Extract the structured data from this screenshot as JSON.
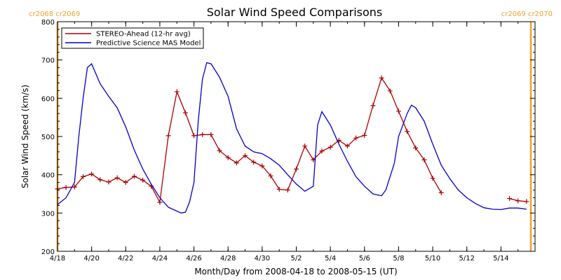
{
  "chart_data": {
    "type": "line",
    "title": "Solar Wind Speed Comparisons",
    "xlabel": "Month/Day from 2008-04-18 to 2008-05-15 (UT)",
    "ylabel": "Solar Wind Speed (km/s)",
    "xlim": [
      "2008-04-18",
      "2008-05-16"
    ],
    "ylim": [
      200,
      800
    ],
    "x_ticks": [
      "4/18",
      "4/20",
      "4/22",
      "4/24",
      "4/26",
      "4/28",
      "4/30",
      "5/2",
      "5/4",
      "5/6",
      "5/8",
      "5/10",
      "5/12",
      "5/14"
    ],
    "x_tick_dates": [
      "2008-04-18",
      "2008-04-20",
      "2008-04-22",
      "2008-04-24",
      "2008-04-26",
      "2008-04-28",
      "2008-04-30",
      "2008-05-02",
      "2008-05-04",
      "2008-05-06",
      "2008-05-08",
      "2008-05-10",
      "2008-05-12",
      "2008-05-14"
    ],
    "y_ticks": [
      200,
      300,
      400,
      500,
      600,
      700,
      800
    ],
    "legend_position": "top-left",
    "carrington_labels": {
      "left": "cr2068 cr2069",
      "right": "cr2069 cr2070",
      "left_marker_date": "2008-04-18",
      "right_marker_date": "2008-05-15 18:00",
      "color": "#f0a030"
    },
    "series": [
      {
        "name": "STEREO-Ahead (12-hr avg)",
        "color": "#aa0000",
        "marker": "plus",
        "segments": [
          [
            [
              "2008-04-18 00:00",
              363
            ],
            [
              "2008-04-18 12:00",
              367
            ],
            [
              "2008-04-19 00:00",
              368
            ],
            [
              "2008-04-19 12:00",
              395
            ],
            [
              "2008-04-20 00:00",
              402
            ],
            [
              "2008-04-20 12:00",
              387
            ],
            [
              "2008-04-21 00:00",
              381
            ],
            [
              "2008-04-21 12:00",
              392
            ],
            [
              "2008-04-22 00:00",
              380
            ],
            [
              "2008-04-22 12:00",
              396
            ],
            [
              "2008-04-23 00:00",
              386
            ],
            [
              "2008-04-23 12:00",
              370
            ],
            [
              "2008-04-24 00:00",
              328
            ],
            [
              "2008-04-24 12:00",
              502
            ],
            [
              "2008-04-25 00:00",
              617
            ],
            [
              "2008-04-25 12:00",
              562
            ],
            [
              "2008-04-26 00:00",
              502
            ],
            [
              "2008-04-26 12:00",
              505
            ],
            [
              "2008-04-27 00:00",
              505
            ],
            [
              "2008-04-27 12:00",
              463
            ],
            [
              "2008-04-28 00:00",
              445
            ],
            [
              "2008-04-28 12:00",
              431
            ],
            [
              "2008-04-29 00:00",
              450
            ],
            [
              "2008-04-29 12:00",
              433
            ],
            [
              "2008-04-30 00:00",
              423
            ],
            [
              "2008-04-30 12:00",
              397
            ],
            [
              "2008-05-01 00:00",
              362
            ],
            [
              "2008-05-01 12:00",
              360
            ],
            [
              "2008-05-02 00:00",
              415
            ],
            [
              "2008-05-02 12:00",
              475
            ],
            [
              "2008-05-03 00:00",
              439
            ],
            [
              "2008-05-03 12:00",
              462
            ],
            [
              "2008-05-04 00:00",
              472
            ],
            [
              "2008-05-04 12:00",
              490
            ],
            [
              "2008-05-05 00:00",
              475
            ],
            [
              "2008-05-05 12:00",
              496
            ],
            [
              "2008-05-06 00:00",
              503
            ],
            [
              "2008-05-06 12:00",
              581
            ],
            [
              "2008-05-07 00:00",
              653
            ],
            [
              "2008-05-07 12:00",
              619
            ],
            [
              "2008-05-08 00:00",
              566
            ],
            [
              "2008-05-08 12:00",
              513
            ],
            [
              "2008-05-09 00:00",
              470
            ],
            [
              "2008-05-09 12:00",
              439
            ],
            [
              "2008-05-10 00:00",
              391
            ],
            [
              "2008-05-10 12:00",
              353
            ]
          ],
          [
            [
              "2008-05-14 12:00",
              338
            ],
            [
              "2008-05-15 00:00",
              332
            ],
            [
              "2008-05-15 12:00",
              330
            ]
          ]
        ]
      },
      {
        "name": "Predictive Science MAS Model",
        "color": "#0000cc",
        "marker": "none",
        "segments": [
          [
            [
              "2008-04-18 00:00",
              322
            ],
            [
              "2008-04-18 12:00",
              340
            ],
            [
              "2008-04-19 00:00",
              380
            ],
            [
              "2008-04-19 06:00",
              500
            ],
            [
              "2008-04-19 12:00",
              600
            ],
            [
              "2008-04-19 18:00",
              680
            ],
            [
              "2008-04-20 00:00",
              690
            ],
            [
              "2008-04-20 12:00",
              638
            ],
            [
              "2008-04-21 00:00",
              605
            ],
            [
              "2008-04-21 12:00",
              575
            ],
            [
              "2008-04-22 00:00",
              525
            ],
            [
              "2008-04-22 12:00",
              465
            ],
            [
              "2008-04-23 00:00",
              415
            ],
            [
              "2008-04-23 12:00",
              375
            ],
            [
              "2008-04-24 00:00",
              340
            ],
            [
              "2008-04-24 12:00",
              315
            ],
            [
              "2008-04-25 00:00",
              305
            ],
            [
              "2008-04-25 06:00",
              300
            ],
            [
              "2008-04-25 12:00",
              302
            ],
            [
              "2008-04-25 18:00",
              330
            ],
            [
              "2008-04-26 00:00",
              380
            ],
            [
              "2008-04-26 06:00",
              540
            ],
            [
              "2008-04-26 12:00",
              650
            ],
            [
              "2008-04-26 18:00",
              693
            ],
            [
              "2008-04-27 00:00",
              690
            ],
            [
              "2008-04-27 12:00",
              655
            ],
            [
              "2008-04-28 00:00",
              605
            ],
            [
              "2008-04-28 12:00",
              520
            ],
            [
              "2008-04-29 00:00",
              475
            ],
            [
              "2008-04-29 12:00",
              460
            ],
            [
              "2008-04-30 00:00",
              455
            ],
            [
              "2008-04-30 12:00",
              442
            ],
            [
              "2008-05-01 00:00",
              425
            ],
            [
              "2008-05-01 12:00",
              400
            ],
            [
              "2008-05-02 00:00",
              376
            ],
            [
              "2008-05-02 12:00",
              357
            ],
            [
              "2008-05-03 00:00",
              370
            ],
            [
              "2008-05-03 06:00",
              530
            ],
            [
              "2008-05-03 12:00",
              565
            ],
            [
              "2008-05-04 00:00",
              530
            ],
            [
              "2008-05-04 12:00",
              480
            ],
            [
              "2008-05-05 00:00",
              435
            ],
            [
              "2008-05-05 12:00",
              395
            ],
            [
              "2008-05-06 00:00",
              370
            ],
            [
              "2008-05-06 12:00",
              350
            ],
            [
              "2008-05-07 00:00",
              345
            ],
            [
              "2008-05-07 06:00",
              360
            ],
            [
              "2008-05-07 18:00",
              430
            ],
            [
              "2008-05-08 00:00",
              500
            ],
            [
              "2008-05-08 12:00",
              560
            ],
            [
              "2008-05-08 18:00",
              582
            ],
            [
              "2008-05-09 00:00",
              575
            ],
            [
              "2008-05-09 12:00",
              540
            ],
            [
              "2008-05-10 00:00",
              480
            ],
            [
              "2008-05-10 12:00",
              425
            ],
            [
              "2008-05-11 00:00",
              390
            ],
            [
              "2008-05-11 12:00",
              360
            ],
            [
              "2008-05-12 00:00",
              340
            ],
            [
              "2008-05-12 12:00",
              325
            ],
            [
              "2008-05-13 00:00",
              314
            ],
            [
              "2008-05-13 12:00",
              310
            ],
            [
              "2008-05-14 00:00",
              309
            ],
            [
              "2008-05-14 12:00",
              313
            ],
            [
              "2008-05-15 00:00",
              313
            ],
            [
              "2008-05-15 12:00",
              310
            ]
          ]
        ]
      }
    ]
  }
}
